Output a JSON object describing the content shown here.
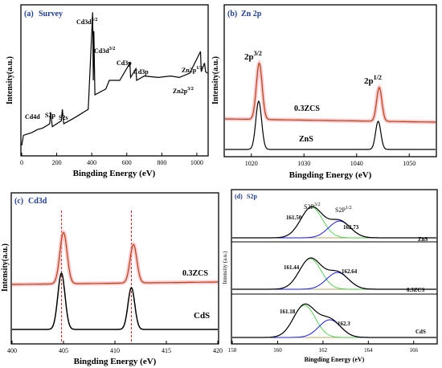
{
  "panels": {
    "a": {
      "tag": "(a)",
      "title": "Survey",
      "xlabel": "Bingding Energy (eV)",
      "ylabel": "Intensity(a.u.)",
      "xticks": [
        "0",
        "200",
        "400",
        "600",
        "800",
        "1000"
      ],
      "peaks": [
        {
          "text": "Cd4d"
        },
        {
          "text": "S2p"
        },
        {
          "text": "S2s"
        },
        {
          "text": "Cd3d",
          "sup": "5/2"
        },
        {
          "text": "Cd3d",
          "sup": "3/2"
        },
        {
          "text": "Cd3p"
        },
        {
          "text": "Cd3p"
        },
        {
          "text": "Zn2p",
          "sup": "1/2"
        },
        {
          "text": "Zn2p",
          "sup": "3/2"
        }
      ]
    },
    "b": {
      "tag": "(b)",
      "title": "Zn 2p",
      "xlabel": "Bingding Energy (eV)",
      "ylabel": "Intensity(a.u.)",
      "xticks": [
        "1020",
        "1030",
        "1040",
        "1050"
      ],
      "peak_labels": [
        {
          "text": "2p",
          "sup": "3/2"
        },
        {
          "text": "2p",
          "sup": "1/2"
        }
      ],
      "series_labels": [
        "0.3ZCS",
        "ZnS"
      ]
    },
    "c": {
      "tag": "(c)",
      "title": "Cd3d",
      "xlabel": "Bingding Energy (eV)",
      "ylabel": "Intensity(a.u.)",
      "xticks": [
        "400",
        "405",
        "410",
        "415",
        "420"
      ],
      "series_labels": [
        "0.3ZCS",
        "CdS"
      ]
    },
    "d": {
      "tag": "(d)",
      "title": "S2p",
      "xlabel": "Bingding Energy (eV)",
      "ylabel": "Intensity (a.u.)",
      "xticks": [
        "158",
        "160",
        "162",
        "164",
        "166"
      ],
      "peak_labels": [
        {
          "text": "S2P",
          "sup": "3/2"
        },
        {
          "text": "S2P",
          "sup": "1/2"
        }
      ],
      "rows": [
        {
          "name": "ZnS",
          "values": [
            "161.50",
            "162.73"
          ]
        },
        {
          "name": "0.3ZCS",
          "values": [
            "161.44",
            "162.64"
          ]
        },
        {
          "name": "CdS",
          "values": [
            "161.18",
            "162.3"
          ]
        }
      ]
    }
  },
  "colors": {
    "black": "#000000",
    "orange": "#b8420c",
    "pink": "#f3a8b8",
    "green": "#33cc33",
    "blue": "#1a1aff",
    "olive": "#9b8c2b",
    "dashed": "#d62020",
    "title_blue": "#1f3c99"
  },
  "chart_data": [
    {
      "type": "line",
      "panel": "a",
      "title": "Survey",
      "xlabel": "Bingding Energy (eV)",
      "ylabel": "Intensity(a.u.)",
      "xlim": [
        0,
        1060
      ],
      "series": [
        {
          "name": "",
          "points": [
            [
              0,
              0.05
            ],
            [
              10,
              0.12
            ],
            [
              60,
              0.14
            ],
            [
              90,
              0.16
            ],
            [
              120,
              0.17
            ],
            [
              160,
              0.2
            ],
            [
              165,
              0.28
            ],
            [
              175,
              0.18
            ],
            [
              226,
              0.22
            ],
            [
              232,
              0.3
            ],
            [
              240,
              0.2
            ],
            [
              300,
              0.24
            ],
            [
              380,
              0.3
            ],
            [
              405,
              0.97
            ],
            [
              409,
              0.5
            ],
            [
              412,
              0.84
            ],
            [
              418,
              0.4
            ],
            [
              480,
              0.44
            ],
            [
              500,
              0.5
            ],
            [
              560,
              0.5
            ],
            [
              618,
              0.62
            ],
            [
              622,
              0.52
            ],
            [
              652,
              0.58
            ],
            [
              656,
              0.5
            ],
            [
              700,
              0.53
            ],
            [
              780,
              0.52
            ],
            [
              850,
              0.53
            ],
            [
              900,
              0.52
            ],
            [
              960,
              0.55
            ],
            [
              1021,
              0.7
            ],
            [
              1025,
              0.56
            ],
            [
              1044,
              0.62
            ],
            [
              1050,
              0.56
            ],
            [
              1060,
              0.55
            ]
          ]
        }
      ],
      "annotations": [
        "Cd4d",
        "S2p",
        "S2s",
        "Cd3d5/2",
        "Cd3d3/2",
        "Cd3p",
        "Cd3p",
        "Zn2p1/2",
        "Zn2p3/2"
      ]
    },
    {
      "type": "line",
      "panel": "b",
      "title": "Zn 2p",
      "xlabel": "Bingding Energy (eV)",
      "ylabel": "Intensity(a.u.)",
      "xlim": [
        1015,
        1055
      ],
      "series": [
        {
          "name": "0.3ZCS",
          "peaks": [
            1021.5,
            1044.3
          ]
        },
        {
          "name": "ZnS",
          "peaks": [
            1021.4,
            1044.1
          ]
        }
      ]
    },
    {
      "type": "line",
      "panel": "c",
      "title": "Cd3d",
      "xlabel": "Bingding Energy (eV)",
      "ylabel": "Intensity(a.u.)",
      "xlim": [
        400,
        420
      ],
      "series": [
        {
          "name": "0.3ZCS",
          "peaks": [
            405.0,
            411.8
          ]
        },
        {
          "name": "CdS",
          "peaks": [
            404.8,
            411.6
          ]
        }
      ],
      "reference_lines": [
        404.8,
        411.6
      ]
    },
    {
      "type": "line",
      "panel": "d",
      "title": "S2p",
      "xlabel": "Bingding Energy (eV)",
      "ylabel": "Intensity (a.u.)",
      "xlim": [
        158,
        167
      ],
      "series": [
        {
          "name": "ZnS",
          "peaks": [
            161.5,
            162.73
          ]
        },
        {
          "name": "0.3ZCS",
          "peaks": [
            161.44,
            162.64
          ]
        },
        {
          "name": "CdS",
          "peaks": [
            161.18,
            162.3
          ]
        }
      ]
    }
  ]
}
